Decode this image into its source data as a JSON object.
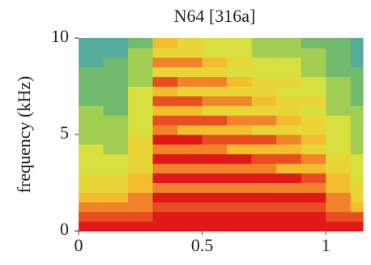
{
  "chart_data": {
    "type": "heatmap",
    "title": "N64 [316a]",
    "y_label": "frequency (kHz)",
    "xlim": [
      0,
      1.15
    ],
    "xticks": [
      0,
      0.5,
      1
    ],
    "ylim": [
      0,
      10
    ],
    "yticks": [
      0,
      5,
      10
    ],
    "xbins": [
      0,
      0.1,
      0.2,
      0.3,
      0.4,
      0.5,
      0.6,
      0.7,
      0.8,
      0.9,
      1.0,
      1.1,
      1.15
    ],
    "ybins": [
      0,
      0.5,
      1,
      1.5,
      2,
      2.5,
      3,
      3.5,
      4,
      4.5,
      5,
      5.5,
      6,
      6.5,
      7,
      7.5,
      8,
      8.5,
      9,
      9.5,
      10
    ],
    "zlim": [
      0,
      10
    ],
    "colormap": [
      "#2f7fc0",
      "#4aa8a8",
      "#7cc060",
      "#d8e040",
      "#f4d030",
      "#f07028",
      "#e01818"
    ],
    "z": [
      [
        10,
        10,
        10,
        10,
        10,
        10,
        10,
        10,
        10,
        10,
        10,
        10
      ],
      [
        9,
        9,
        9,
        10,
        10,
        10,
        10,
        10,
        10,
        10,
        9,
        9
      ],
      [
        8,
        8,
        8,
        9,
        9,
        9,
        9,
        9,
        9,
        9,
        8,
        7
      ],
      [
        7,
        7,
        8,
        10,
        10,
        10,
        10,
        10,
        10,
        10,
        8,
        6
      ],
      [
        6,
        6,
        7,
        8,
        8,
        8,
        8,
        8,
        8,
        8,
        7,
        6
      ],
      [
        6,
        6,
        7,
        10,
        10,
        10,
        10,
        10,
        10,
        9,
        7,
        5
      ],
      [
        5,
        5,
        6,
        8,
        8,
        8,
        8,
        8,
        7,
        7,
        6,
        5
      ],
      [
        5,
        5,
        6,
        10,
        10,
        10,
        10,
        9,
        9,
        8,
        6,
        5
      ],
      [
        5,
        4,
        6,
        8,
        8,
        8,
        7,
        7,
        7,
        6,
        5,
        4
      ],
      [
        4,
        4,
        6,
        10,
        10,
        9,
        9,
        9,
        8,
        7,
        5,
        4
      ],
      [
        4,
        4,
        5,
        8,
        7,
        7,
        7,
        6,
        6,
        6,
        5,
        4
      ],
      [
        4,
        4,
        5,
        9,
        9,
        9,
        8,
        8,
        7,
        6,
        5,
        4
      ],
      [
        4,
        3,
        5,
        7,
        7,
        6,
        6,
        6,
        6,
        5,
        4,
        4
      ],
      [
        3,
        3,
        5,
        9,
        9,
        8,
        8,
        7,
        6,
        6,
        4,
        3
      ],
      [
        3,
        3,
        5,
        7,
        6,
        6,
        6,
        6,
        5,
        5,
        4,
        3
      ],
      [
        3,
        3,
        4,
        9,
        8,
        8,
        7,
        6,
        6,
        5,
        4,
        3
      ],
      [
        3,
        3,
        4,
        6,
        6,
        6,
        5,
        5,
        5,
        4,
        3,
        3
      ],
      [
        2,
        3,
        4,
        8,
        8,
        7,
        6,
        5,
        5,
        4,
        3,
        2
      ],
      [
        2,
        2,
        4,
        6,
        6,
        5,
        5,
        4,
        4,
        4,
        3,
        2
      ],
      [
        2,
        2,
        3,
        7,
        6,
        5,
        5,
        4,
        4,
        3,
        3,
        2
      ]
    ]
  }
}
